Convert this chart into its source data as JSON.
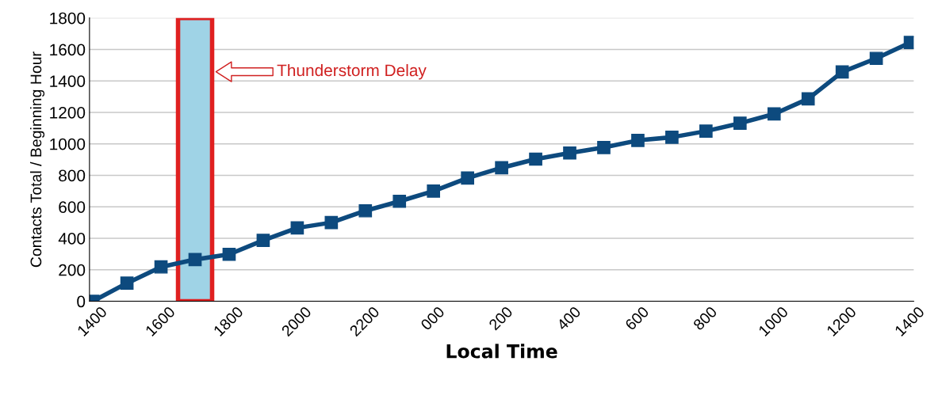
{
  "chart_data": {
    "type": "line",
    "xlabel": "Local Time",
    "ylabel": "Contacts Total / Beginning Hour",
    "categories": [
      "1400",
      null,
      "1600",
      null,
      "1800",
      null,
      "2000",
      null,
      "2200",
      null,
      "000",
      null,
      "200",
      null,
      "400",
      null,
      "600",
      null,
      "800",
      null,
      "1000",
      null,
      "1200",
      null,
      "1400"
    ],
    "series": [
      {
        "color": "#0d4a7e",
        "values": [
          0,
          115,
          218,
          265,
          298,
          387,
          466,
          500,
          575,
          635,
          700,
          783,
          848,
          903,
          942,
          977,
          1022,
          1042,
          1081,
          1131,
          1190,
          1286,
          1457,
          1543,
          1644
        ]
      }
    ],
    "ylim": [
      0,
      1800
    ],
    "yticks": [
      0,
      200,
      400,
      600,
      800,
      1000,
      1200,
      1400,
      1600,
      1800
    ],
    "grid": "y",
    "marker": "square",
    "line_style": "solid",
    "bands": [
      {
        "axis": "x",
        "from": "1600",
        "to": "1800",
        "color": "#9fd3e6"
      }
    ],
    "annotations": [
      "Thunderstorm Delay"
    ]
  }
}
